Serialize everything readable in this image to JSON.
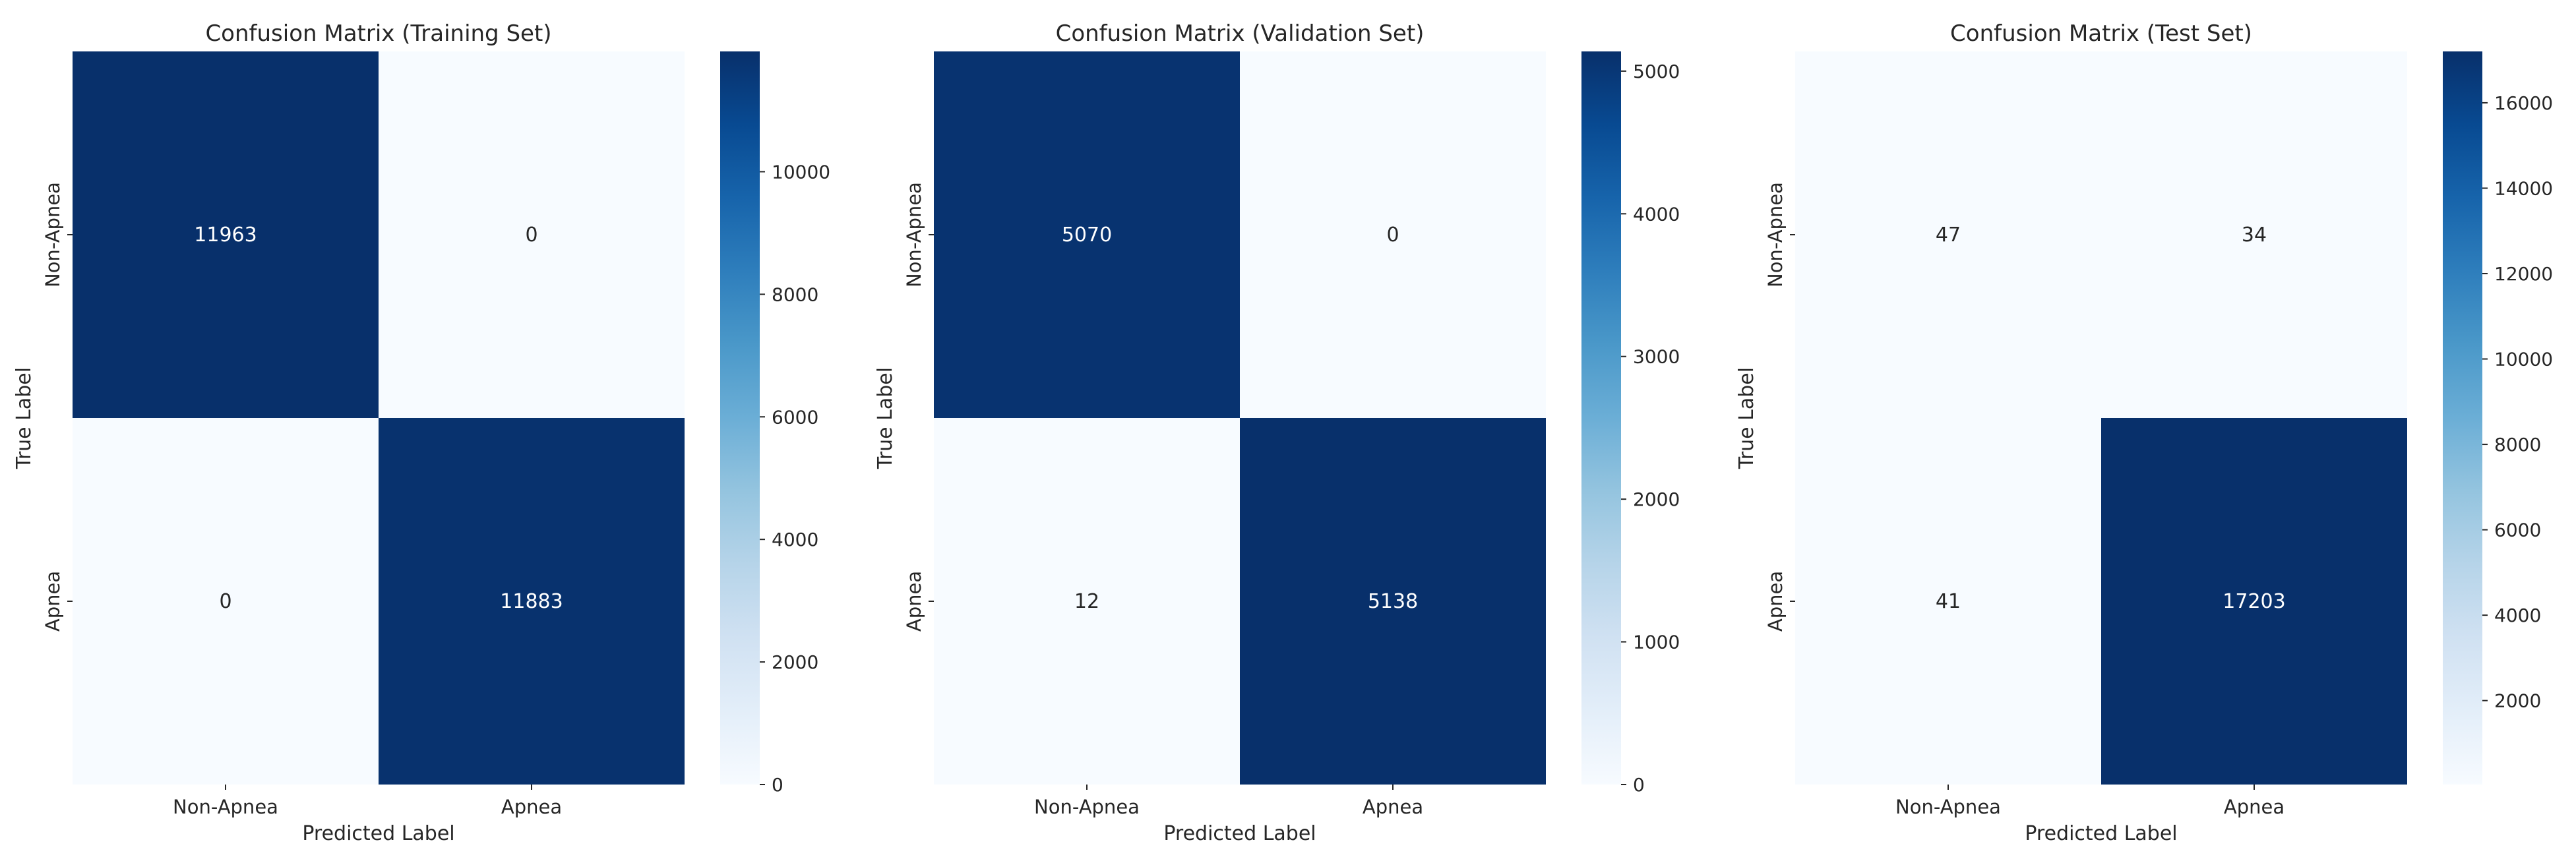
{
  "chart_data": [
    {
      "type": "heatmap",
      "title": "Confusion Matrix (Training Set)",
      "xlabel": "Predicted Label",
      "ylabel": "True Label",
      "x_categories": [
        "Non-Apnea",
        "Apnea"
      ],
      "y_categories": [
        "Non-Apnea",
        "Apnea"
      ],
      "values": [
        [
          11963,
          0
        ],
        [
          0,
          11883
        ]
      ],
      "colormap": "Blues",
      "colorbar": {
        "range": [
          0,
          11963
        ],
        "ticks": [
          0,
          2000,
          4000,
          6000,
          8000,
          10000
        ]
      }
    },
    {
      "type": "heatmap",
      "title": "Confusion Matrix (Validation Set)",
      "xlabel": "Predicted Label",
      "ylabel": "True Label",
      "x_categories": [
        "Non-Apnea",
        "Apnea"
      ],
      "y_categories": [
        "Non-Apnea",
        "Apnea"
      ],
      "values": [
        [
          5070,
          0
        ],
        [
          12,
          5138
        ]
      ],
      "colormap": "Blues",
      "colorbar": {
        "range": [
          0,
          5138
        ],
        "ticks": [
          0,
          1000,
          2000,
          3000,
          4000,
          5000
        ]
      }
    },
    {
      "type": "heatmap",
      "title": "Confusion Matrix (Test Set)",
      "xlabel": "Predicted Label",
      "ylabel": "True Label",
      "x_categories": [
        "Non-Apnea",
        "Apnea"
      ],
      "y_categories": [
        "Non-Apnea",
        "Apnea"
      ],
      "values": [
        [
          47,
          34
        ],
        [
          41,
          17203
        ]
      ],
      "colormap": "Blues",
      "colorbar": {
        "range": [
          34,
          17203
        ],
        "ticks": [
          2000,
          4000,
          6000,
          8000,
          10000,
          12000,
          14000,
          16000
        ]
      }
    }
  ],
  "colors": {
    "blues_low": "#f7fbff",
    "blues_high": "#08306b",
    "text_dark": "#262626",
    "text_light": "#ffffff"
  }
}
